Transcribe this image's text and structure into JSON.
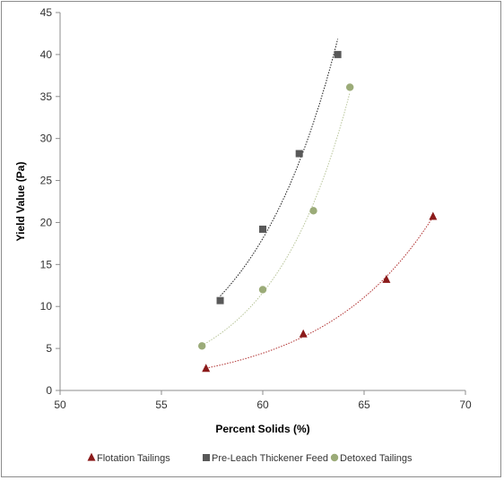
{
  "chart_data": {
    "type": "scatter",
    "title": "",
    "xlabel": "Percent Solids (%)",
    "ylabel": "Yield Value (Pa)",
    "xlim": [
      50,
      70
    ],
    "ylim": [
      0,
      45
    ],
    "xticks": [
      50,
      55,
      60,
      65,
      70
    ],
    "yticks": [
      0,
      5,
      10,
      15,
      20,
      25,
      30,
      35,
      40,
      45
    ],
    "grid": false,
    "legend_position": "bottom",
    "trendlines": "exponential, dotted",
    "series": [
      {
        "name": "Flotation Tailings",
        "marker": "triangle",
        "color": "#8b1a1a",
        "trend_color": "#b03030",
        "x": [
          57.2,
          62.0,
          66.1,
          68.4
        ],
        "y": [
          2.6,
          6.7,
          13.2,
          20.7
        ]
      },
      {
        "name": "Pre-Leach Thickener Feed",
        "marker": "square",
        "color": "#595959",
        "trend_color": "#1a1a1a",
        "x": [
          57.9,
          60.0,
          61.8,
          63.7
        ],
        "y": [
          10.7,
          19.2,
          28.2,
          40.0
        ]
      },
      {
        "name": "Detoxed Tailings",
        "marker": "circle",
        "color": "#9bab78",
        "trend_color": "#b8c59a",
        "x": [
          57.0,
          60.0,
          62.5,
          64.3
        ],
        "y": [
          5.3,
          12.0,
          21.4,
          36.1
        ]
      }
    ]
  }
}
